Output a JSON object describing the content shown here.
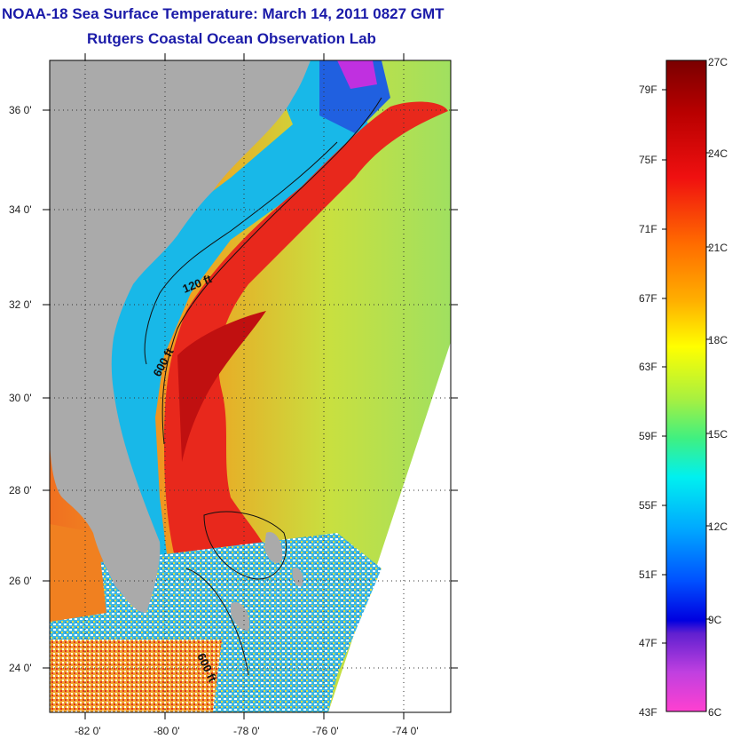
{
  "title": "NOAA-18 Sea Surface Temperature:  March 14, 2011 0827 GMT",
  "subtitle": "Rutgers Coastal Ocean Observation Lab",
  "map": {
    "lat_ticks": [
      "36 0'",
      "34 0'",
      "32 0'",
      "30 0'",
      "28 0'",
      "26 0'",
      "24 0'"
    ],
    "lon_ticks": [
      "-82 0'",
      "-80 0'",
      "-78 0'",
      "-76 0'",
      "-74 0'"
    ],
    "contour_labels": [
      "120 ft",
      "600 ft",
      "600 ft"
    ]
  },
  "colorbar": {
    "fahrenheit": [
      "79F",
      "75F",
      "71F",
      "67F",
      "63F",
      "59F",
      "55F",
      "51F",
      "47F",
      "43F"
    ],
    "celsius": [
      "27C",
      "24C",
      "21C",
      "18C",
      "15C",
      "12C",
      "9C",
      "6C"
    ]
  },
  "colors": {
    "title": "#1a1aa8",
    "land": "#aaaaaa",
    "gulf_stream": "#e8281c",
    "shelf_water": "#18b8e8"
  }
}
